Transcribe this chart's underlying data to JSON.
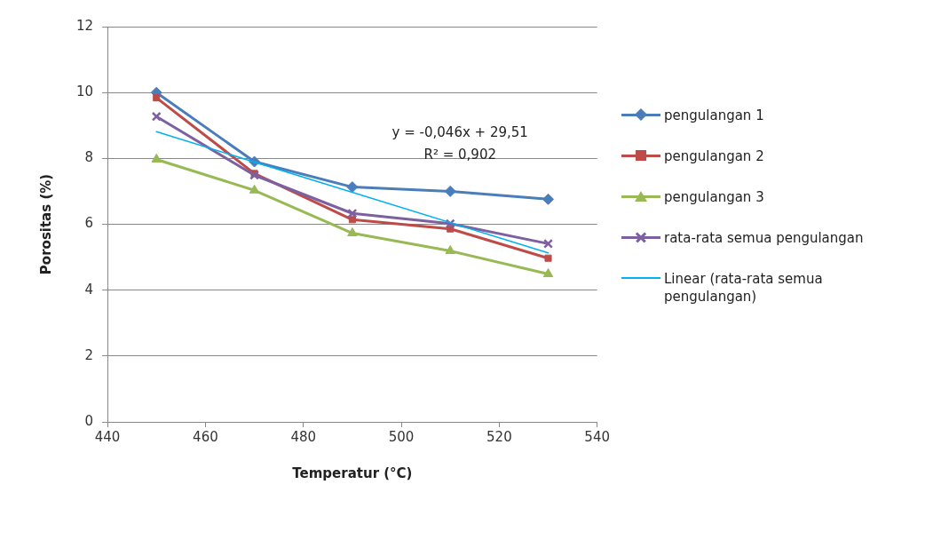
{
  "chart_data": {
    "type": "line",
    "xlabel": "Temperatur (°C)",
    "ylabel": "Porositas (%)",
    "x": [
      450,
      470,
      490,
      510,
      530
    ],
    "series": [
      {
        "name": "pengulangan 1",
        "color": "#4a7ebb",
        "marker": "diamond",
        "values": [
          10.0,
          7.9,
          7.13,
          7.0,
          6.76
        ]
      },
      {
        "name": "pengulangan 2",
        "color": "#be4b48",
        "marker": "square",
        "values": [
          9.84,
          7.54,
          6.14,
          5.86,
          4.97
        ]
      },
      {
        "name": "pengulangan 3",
        "color": "#98b954",
        "marker": "triangle",
        "values": [
          7.97,
          7.03,
          5.73,
          5.19,
          4.49
        ]
      },
      {
        "name": "rata-rata semua pengulangan",
        "color": "#7d60a0",
        "marker": "cross",
        "values": [
          9.27,
          7.49,
          6.33,
          6.02,
          5.41
        ]
      },
      {
        "name": "Linear (rata-rata semua pengulangan)",
        "color": "#00b0f0",
        "marker": "none",
        "x": [
          450,
          530
        ],
        "values": [
          8.81,
          5.13
        ]
      }
    ],
    "xlim": [
      440,
      540
    ],
    "xticks": [
      440,
      460,
      480,
      500,
      520,
      540
    ],
    "ylim": [
      0,
      12
    ],
    "yticks": [
      0,
      2,
      4,
      6,
      8,
      10,
      12
    ],
    "grid": "y",
    "legend": "right",
    "annotations": [
      "y = -0,046x + 29,51",
      "R² = 0,902"
    ]
  }
}
